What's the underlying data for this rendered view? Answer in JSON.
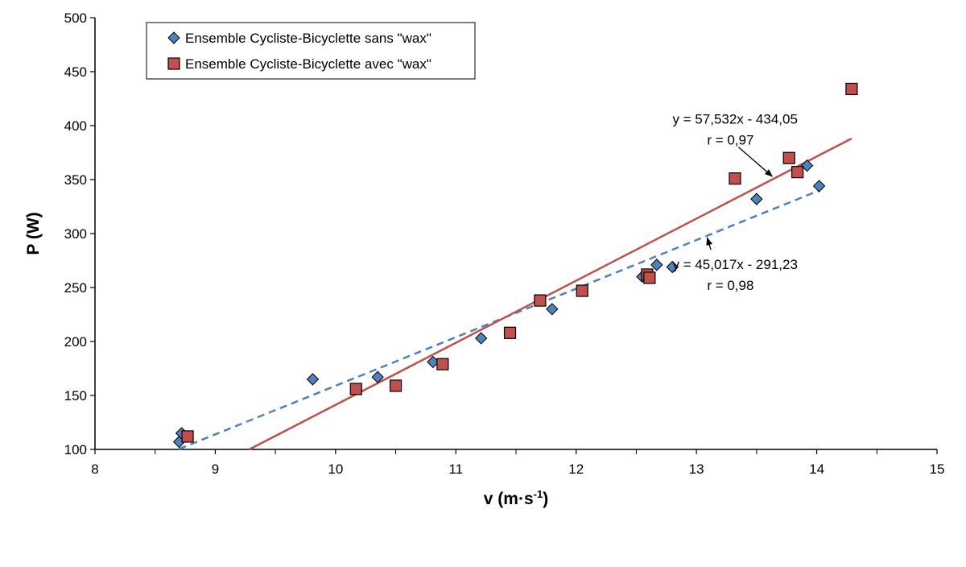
{
  "chart_data": {
    "type": "scatter",
    "xlabel": "v (m·s",
    "xlabel_sup": "-1",
    "xlabel_close": ")",
    "ylabel": "P (W)",
    "xlim": [
      8,
      15
    ],
    "ylim": [
      100,
      500
    ],
    "xticks": [
      "8",
      "9",
      "10",
      "11",
      "12",
      "13",
      "14",
      "15"
    ],
    "yticks": [
      "100",
      "150",
      "200",
      "250",
      "300",
      "350",
      "400",
      "450",
      "500"
    ],
    "grid": false,
    "legend_position": "top-left",
    "series": [
      {
        "name": "Ensemble Cycliste-Bicyclette sans \"wax\"",
        "marker": "diamond",
        "color": "#4f81bd",
        "points": [
          [
            8.7,
            107
          ],
          [
            8.72,
            115
          ],
          [
            9.81,
            165
          ],
          [
            10.35,
            167
          ],
          [
            10.81,
            181
          ],
          [
            11.21,
            203
          ],
          [
            11.8,
            230
          ],
          [
            12.55,
            260
          ],
          [
            12.67,
            271
          ],
          [
            12.8,
            269
          ],
          [
            13.5,
            332
          ],
          [
            13.92,
            363
          ],
          [
            14.02,
            344
          ]
        ],
        "trendline": {
          "slope": 45.017,
          "intercept": -291.23,
          "x_range": [
            8.7,
            14.02
          ],
          "style": "dashed",
          "color": "#4f81bd"
        }
      },
      {
        "name": "Ensemble Cycliste-Bicyclette avec \"wax\"",
        "marker": "square",
        "color": "#c0504d",
        "points": [
          [
            8.77,
            112
          ],
          [
            10.17,
            156
          ],
          [
            10.5,
            159
          ],
          [
            10.89,
            179
          ],
          [
            11.45,
            208
          ],
          [
            11.7,
            238
          ],
          [
            12.05,
            247
          ],
          [
            12.59,
            262
          ],
          [
            12.61,
            259
          ],
          [
            13.32,
            351
          ],
          [
            13.77,
            370
          ],
          [
            13.84,
            357
          ],
          [
            14.29,
            434
          ]
        ],
        "trendline": {
          "slope": 57.532,
          "intercept": -434.05,
          "x_range": [
            9.28,
            14.29
          ],
          "style": "solid",
          "color": "#c0504d"
        }
      }
    ],
    "annotations": [
      {
        "lines": [
          "y = 57,532x - 434,05",
          "r = 0,97"
        ],
        "text_anchor_point": [
          13.35,
          402
        ],
        "arrow_from": [
          13.35,
          380
        ],
        "arrow_to": [
          13.63,
          353
        ]
      },
      {
        "lines": [
          "y = 45,017x - 291,23",
          "r = 0,98"
        ],
        "text_anchor_point": [
          13.35,
          267
        ],
        "arrow_from": [
          13.12,
          285
        ],
        "arrow_to": [
          13.09,
          296
        ]
      }
    ]
  }
}
